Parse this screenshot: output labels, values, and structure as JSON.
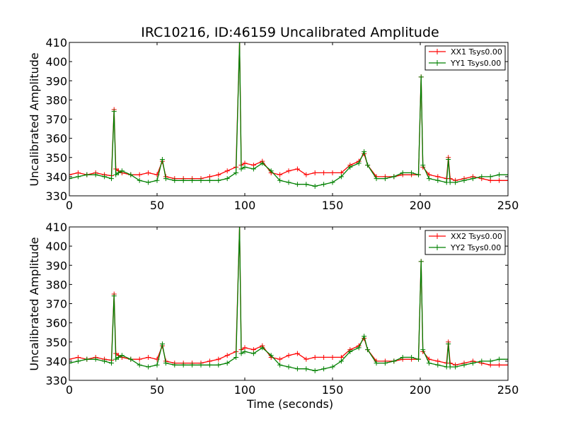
{
  "chart_data": [
    {
      "type": "line",
      "title": "IRC10216, ID:46159 Uncalibrated Amplitude",
      "xlabel": "",
      "ylabel": "Uncalibrated Amplitude",
      "xlim": [
        0,
        250
      ],
      "ylim": [
        330,
        410
      ],
      "x_ticks": [
        "0",
        "50",
        "100",
        "150",
        "200",
        "250"
      ],
      "y_ticks": [
        "330",
        "340",
        "350",
        "360",
        "370",
        "380",
        "390",
        "400",
        "410"
      ],
      "legend_position": "top-right",
      "grid": false,
      "series": [
        {
          "name": "XX1 Tsys0.00",
          "color": "#ff0000",
          "marker": "+",
          "points": [
            [
              0,
              341
            ],
            [
              5,
              342
            ],
            [
              10,
              341
            ],
            [
              15,
              342
            ],
            [
              20,
              341
            ],
            [
              24,
              340.5
            ],
            [
              25.5,
              375
            ],
            [
              26.5,
              344
            ],
            [
              28,
              343
            ],
            [
              30,
              342
            ],
            [
              35,
              341
            ],
            [
              40,
              341
            ],
            [
              45,
              342
            ],
            [
              50,
              341
            ],
            [
              53,
              348
            ],
            [
              55,
              340
            ],
            [
              60,
              339
            ],
            [
              65,
              339
            ],
            [
              70,
              339
            ],
            [
              75,
              339
            ],
            [
              80,
              340
            ],
            [
              85,
              341
            ],
            [
              90,
              343
            ],
            [
              95,
              345
            ],
            [
              97,
              410
            ],
            [
              98,
              346
            ],
            [
              100,
              347
            ],
            [
              105,
              346
            ],
            [
              110,
              348
            ],
            [
              115,
              342
            ],
            [
              120,
              341
            ],
            [
              125,
              343
            ],
            [
              130,
              344
            ],
            [
              135,
              341
            ],
            [
              140,
              342
            ],
            [
              145,
              342
            ],
            [
              150,
              342
            ],
            [
              155,
              342
            ],
            [
              160,
              346
            ],
            [
              165,
              348
            ],
            [
              168,
              352
            ],
            [
              170,
              346
            ],
            [
              175,
              340
            ],
            [
              180,
              340
            ],
            [
              185,
              340
            ],
            [
              190,
              341
            ],
            [
              195,
              341
            ],
            [
              199,
              341
            ],
            [
              200.5,
              392
            ],
            [
              201.5,
              345
            ],
            [
              205,
              341
            ],
            [
              210,
              340
            ],
            [
              215,
              339
            ],
            [
              216,
              350
            ],
            [
              217,
              339
            ],
            [
              220,
              338
            ],
            [
              225,
              339
            ],
            [
              230,
              340
            ],
            [
              235,
              339
            ],
            [
              240,
              338
            ],
            [
              245,
              338
            ],
            [
              250,
              338
            ]
          ]
        },
        {
          "name": "YY1 Tsys0.00",
          "color": "#008000",
          "marker": "+",
          "points": [
            [
              0,
              339
            ],
            [
              5,
              340
            ],
            [
              10,
              341
            ],
            [
              15,
              341
            ],
            [
              20,
              340
            ],
            [
              24,
              339
            ],
            [
              25.5,
              374
            ],
            [
              26.5,
              341
            ],
            [
              28,
              342
            ],
            [
              30,
              343
            ],
            [
              35,
              341
            ],
            [
              40,
              338
            ],
            [
              45,
              337
            ],
            [
              50,
              338
            ],
            [
              53,
              349
            ],
            [
              55,
              339
            ],
            [
              60,
              338
            ],
            [
              65,
              338
            ],
            [
              70,
              338
            ],
            [
              75,
              338
            ],
            [
              80,
              338
            ],
            [
              85,
              338
            ],
            [
              90,
              339
            ],
            [
              95,
              342
            ],
            [
              97,
              410
            ],
            [
              98,
              344
            ],
            [
              100,
              345
            ],
            [
              105,
              344
            ],
            [
              110,
              347
            ],
            [
              115,
              343
            ],
            [
              120,
              338
            ],
            [
              125,
              337
            ],
            [
              130,
              336
            ],
            [
              135,
              336
            ],
            [
              140,
              335
            ],
            [
              145,
              336
            ],
            [
              150,
              337
            ],
            [
              155,
              340
            ],
            [
              160,
              345
            ],
            [
              165,
              347
            ],
            [
              168,
              353
            ],
            [
              170,
              346
            ],
            [
              175,
              339
            ],
            [
              180,
              339
            ],
            [
              185,
              340
            ],
            [
              190,
              342
            ],
            [
              195,
              342
            ],
            [
              199,
              341
            ],
            [
              200.5,
              392
            ],
            [
              201.5,
              346
            ],
            [
              205,
              339
            ],
            [
              210,
              338
            ],
            [
              215,
              337
            ],
            [
              216,
              349
            ],
            [
              217,
              337
            ],
            [
              220,
              337
            ],
            [
              225,
              338
            ],
            [
              230,
              339
            ],
            [
              235,
              340
            ],
            [
              240,
              340
            ],
            [
              245,
              341
            ],
            [
              250,
              341
            ]
          ]
        }
      ]
    },
    {
      "type": "line",
      "title": "",
      "xlabel": "Time (seconds)",
      "ylabel": "Uncalibrated Amplitude",
      "xlim": [
        0,
        250
      ],
      "ylim": [
        330,
        410
      ],
      "x_ticks": [
        "0",
        "50",
        "100",
        "150",
        "200",
        "250"
      ],
      "y_ticks": [
        "330",
        "340",
        "350",
        "360",
        "370",
        "380",
        "390",
        "400",
        "410"
      ],
      "legend_position": "top-right",
      "grid": false,
      "series": [
        {
          "name": "XX2 Tsys0.00",
          "color": "#ff0000",
          "marker": "+",
          "points": [
            [
              0,
              341
            ],
            [
              5,
              342
            ],
            [
              10,
              341
            ],
            [
              15,
              342
            ],
            [
              20,
              341
            ],
            [
              24,
              340.5
            ],
            [
              25.5,
              375
            ],
            [
              26.5,
              344
            ],
            [
              28,
              343
            ],
            [
              30,
              342
            ],
            [
              35,
              341
            ],
            [
              40,
              341
            ],
            [
              45,
              342
            ],
            [
              50,
              341
            ],
            [
              53,
              348
            ],
            [
              55,
              340
            ],
            [
              60,
              339
            ],
            [
              65,
              339
            ],
            [
              70,
              339
            ],
            [
              75,
              339
            ],
            [
              80,
              340
            ],
            [
              85,
              341
            ],
            [
              90,
              343
            ],
            [
              95,
              345
            ],
            [
              97,
              410
            ],
            [
              98,
              346
            ],
            [
              100,
              347
            ],
            [
              105,
              346
            ],
            [
              110,
              348
            ],
            [
              115,
              342
            ],
            [
              120,
              341
            ],
            [
              125,
              343
            ],
            [
              130,
              344
            ],
            [
              135,
              341
            ],
            [
              140,
              342
            ],
            [
              145,
              342
            ],
            [
              150,
              342
            ],
            [
              155,
              342
            ],
            [
              160,
              346
            ],
            [
              165,
              348
            ],
            [
              168,
              352
            ],
            [
              170,
              346
            ],
            [
              175,
              340
            ],
            [
              180,
              340
            ],
            [
              185,
              340
            ],
            [
              190,
              341
            ],
            [
              195,
              341
            ],
            [
              199,
              341
            ],
            [
              200.5,
              392
            ],
            [
              201.5,
              345
            ],
            [
              205,
              341
            ],
            [
              210,
              340
            ],
            [
              215,
              339
            ],
            [
              216,
              350
            ],
            [
              217,
              339
            ],
            [
              220,
              338
            ],
            [
              225,
              339
            ],
            [
              230,
              340
            ],
            [
              235,
              339
            ],
            [
              240,
              338
            ],
            [
              245,
              338
            ],
            [
              250,
              338
            ]
          ]
        },
        {
          "name": "YY2 Tsys0.00",
          "color": "#008000",
          "marker": "+",
          "points": [
            [
              0,
              339
            ],
            [
              5,
              340
            ],
            [
              10,
              341
            ],
            [
              15,
              341
            ],
            [
              20,
              340
            ],
            [
              24,
              339
            ],
            [
              25.5,
              374
            ],
            [
              26.5,
              341
            ],
            [
              28,
              342
            ],
            [
              30,
              343
            ],
            [
              35,
              341
            ],
            [
              40,
              338
            ],
            [
              45,
              337
            ],
            [
              50,
              338
            ],
            [
              53,
              349
            ],
            [
              55,
              339
            ],
            [
              60,
              338
            ],
            [
              65,
              338
            ],
            [
              70,
              338
            ],
            [
              75,
              338
            ],
            [
              80,
              338
            ],
            [
              85,
              338
            ],
            [
              90,
              339
            ],
            [
              95,
              342
            ],
            [
              97,
              410
            ],
            [
              98,
              344
            ],
            [
              100,
              345
            ],
            [
              105,
              344
            ],
            [
              110,
              347
            ],
            [
              115,
              343
            ],
            [
              120,
              338
            ],
            [
              125,
              337
            ],
            [
              130,
              336
            ],
            [
              135,
              336
            ],
            [
              140,
              335
            ],
            [
              145,
              336
            ],
            [
              150,
              337
            ],
            [
              155,
              340
            ],
            [
              160,
              345
            ],
            [
              165,
              347
            ],
            [
              168,
              353
            ],
            [
              170,
              346
            ],
            [
              175,
              339
            ],
            [
              180,
              339
            ],
            [
              185,
              340
            ],
            [
              190,
              342
            ],
            [
              195,
              342
            ],
            [
              199,
              341
            ],
            [
              200.5,
              392
            ],
            [
              201.5,
              346
            ],
            [
              205,
              339
            ],
            [
              210,
              338
            ],
            [
              215,
              337
            ],
            [
              216,
              349
            ],
            [
              217,
              337
            ],
            [
              220,
              337
            ],
            [
              225,
              338
            ],
            [
              230,
              339
            ],
            [
              235,
              340
            ],
            [
              240,
              340
            ],
            [
              245,
              341
            ],
            [
              250,
              341
            ]
          ]
        }
      ]
    }
  ]
}
